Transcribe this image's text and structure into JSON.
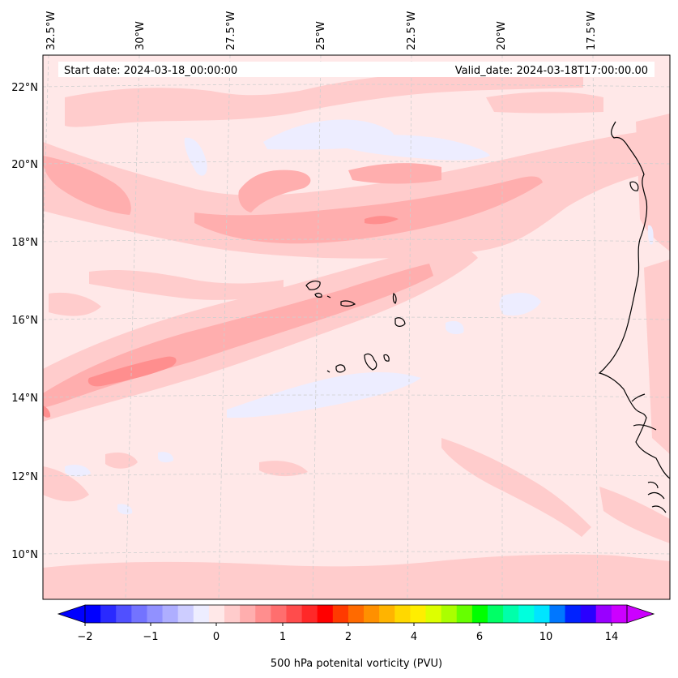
{
  "map": {
    "start_date": "Start date: 2024-03-18_00:00:00",
    "valid_date": "Valid_date: 2024-03-18T17:00:00.00",
    "lon_labels": [
      "32.5°W",
      "30°W",
      "27.5°W",
      "25°W",
      "22.5°W",
      "20°W",
      "17.5°W"
    ],
    "lat_labels": [
      "22°N",
      "20°N",
      "18°N",
      "16°N",
      "14°N",
      "12°N",
      "10°N"
    ],
    "gridlines": true
  },
  "colorbar": {
    "label": "500 hPa potenital vorticity (PVU)",
    "ticks": [
      "−2",
      "−1",
      "0",
      "1",
      "2",
      "4",
      "6",
      "10",
      "14"
    ],
    "colors": [
      "#0000ff",
      "#2a2aff",
      "#5050ff",
      "#7373ff",
      "#9191ff",
      "#aeaeff",
      "#cdcdff",
      "#ededff",
      "#ffe8e8",
      "#ffcccc",
      "#ffaeae",
      "#ff8e8e",
      "#ff6e6e",
      "#ff4c4c",
      "#ff2828",
      "#ff0000",
      "#ff3a00",
      "#ff6a00",
      "#ff9000",
      "#ffb400",
      "#ffd800",
      "#ffee00",
      "#ddff00",
      "#aaff00",
      "#66ff00",
      "#00ff00",
      "#00ff66",
      "#00ffaa",
      "#00ffdd",
      "#00e5ff",
      "#0077ff",
      "#0022ff",
      "#2a00ff",
      "#9900ff",
      "#cc00ff"
    ],
    "extend_low_color": "#0000ff",
    "extend_high_color": "#cc00ff"
  },
  "fill_colors": {
    "background": "#ffe8e8",
    "level_1": "#ffcccc",
    "level_2": "#ffaeae",
    "level_3": "#ff8e8e",
    "negative": "#ededff"
  }
}
